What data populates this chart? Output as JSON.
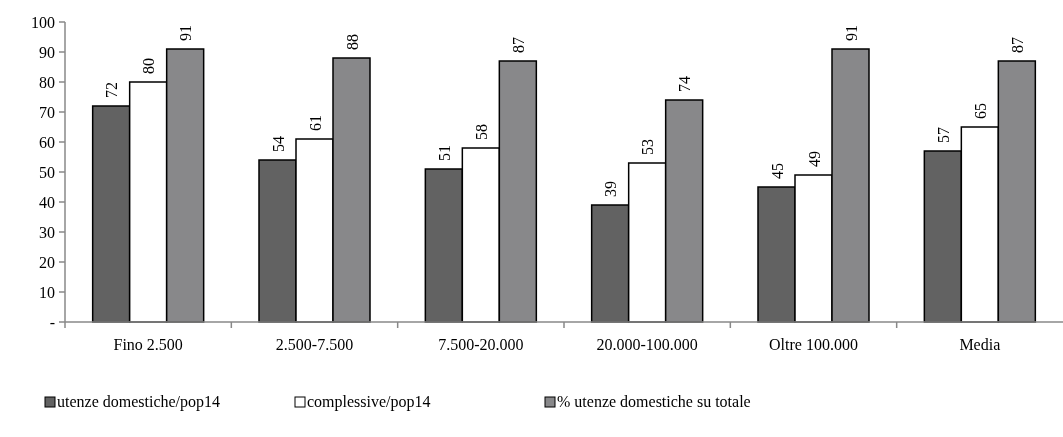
{
  "chart_data": {
    "type": "bar",
    "categories": [
      "Fino 2.500",
      "2.500-7.500",
      "7.500-20.000",
      "20.000-100.000",
      "Oltre 100.000",
      "Media"
    ],
    "series": [
      {
        "name": "utenze domestiche/pop14",
        "color": "#626262",
        "values": [
          72,
          54,
          51,
          39,
          45,
          57
        ]
      },
      {
        "name": "complessive/pop14",
        "color": "#ffffff",
        "values": [
          80,
          61,
          58,
          53,
          49,
          65
        ]
      },
      {
        "name": "% utenze domestiche su totale",
        "color": "#88888a",
        "values": [
          91,
          88,
          87,
          74,
          91,
          87
        ]
      }
    ],
    "ylim": [
      0,
      100
    ],
    "yticks": [
      {
        "value": 0,
        "label": "-"
      },
      10,
      20,
      30,
      40,
      50,
      60,
      70,
      80,
      90,
      100
    ],
    "data_labels": true,
    "legend": "bottom",
    "grid": false
  }
}
